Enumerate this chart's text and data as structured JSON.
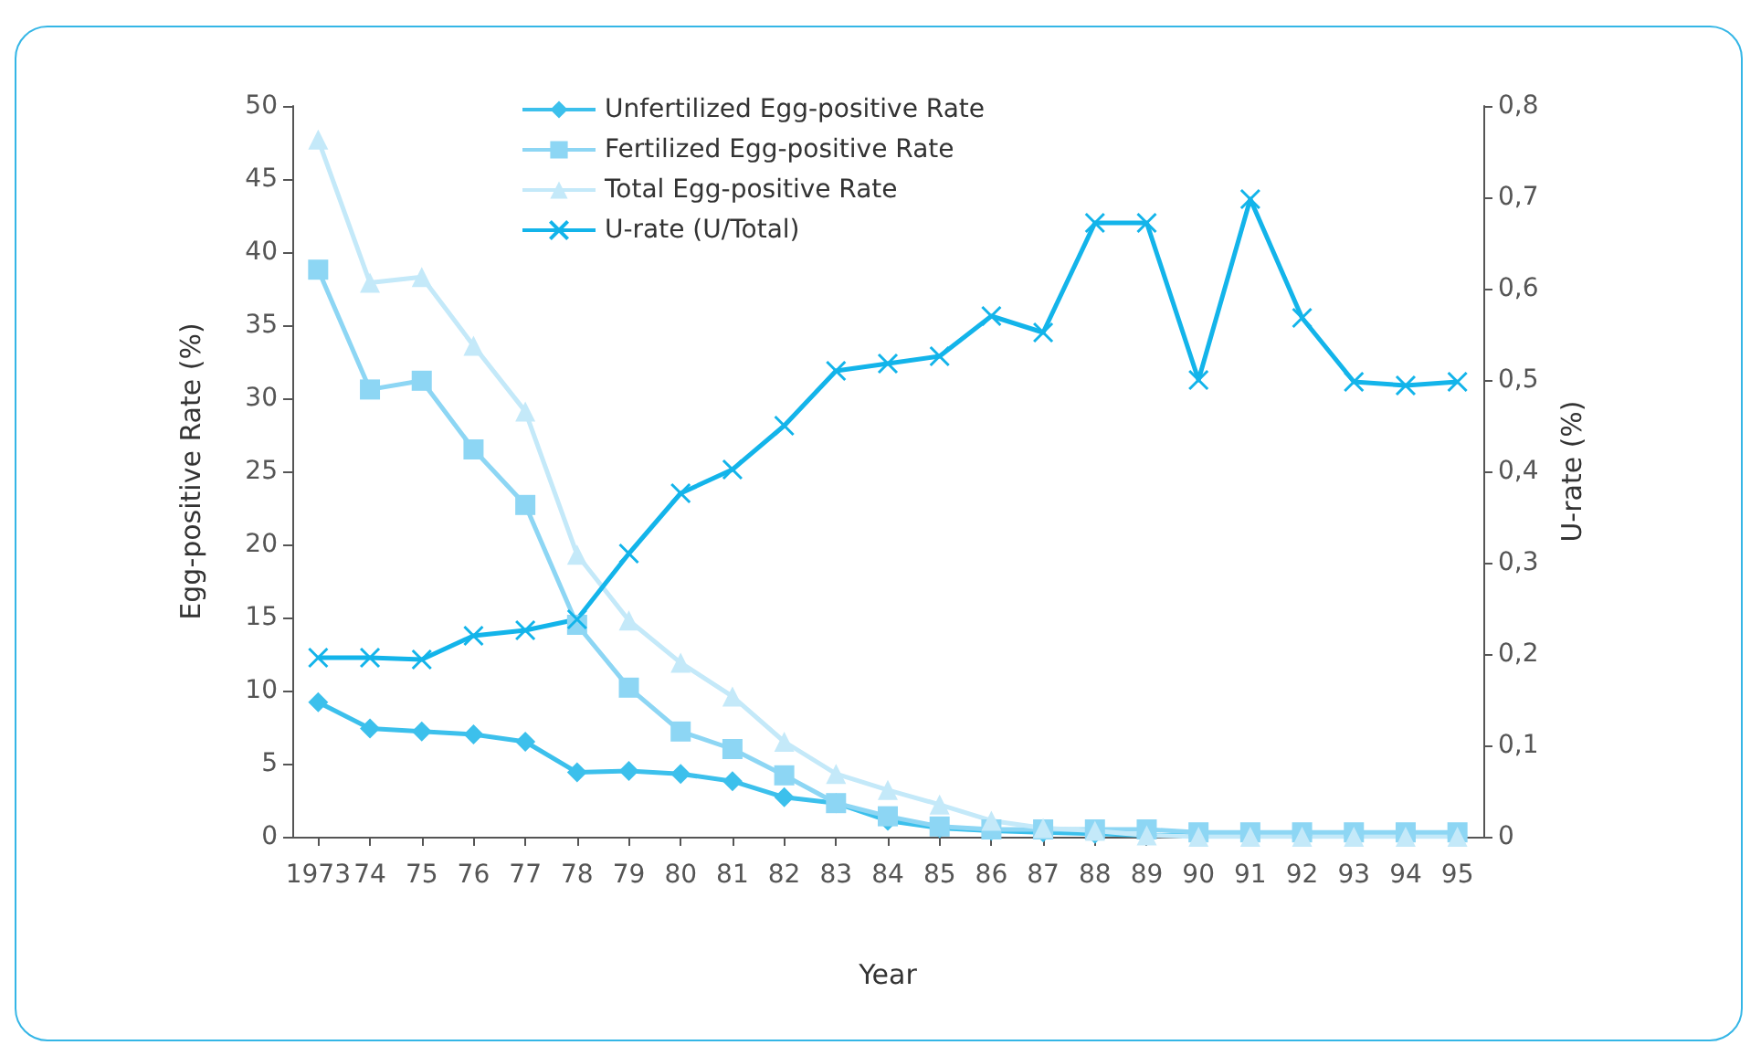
{
  "chart_data": {
    "type": "line",
    "xlabel": "Year",
    "ylabel": "Egg-positive Rate (%)",
    "y2label": "U-rate (%)",
    "categories": [
      "1973",
      "74",
      "75",
      "76",
      "77",
      "78",
      "79",
      "80",
      "81",
      "82",
      "83",
      "84",
      "85",
      "86",
      "87",
      "88",
      "89",
      "90",
      "91",
      "92",
      "93",
      "94",
      "95"
    ],
    "series": [
      {
        "name": "Unfertilized Egg-positive Rate",
        "color": "#3cc0ec",
        "marker": "diamond",
        "values": [
          9.2,
          7.4,
          7.2,
          7.0,
          6.5,
          4.4,
          4.5,
          4.3,
          3.8,
          2.7,
          2.3,
          1.1,
          0.6,
          0.4,
          0.3,
          0.2,
          0.1,
          0.1,
          0.1,
          0.1,
          0.1,
          0.1,
          0.1
        ]
      },
      {
        "name": "Fertilized Egg-positive Rate",
        "color": "#8dd6f4",
        "marker": "square",
        "values": [
          38.8,
          30.6,
          31.2,
          26.5,
          22.7,
          14.5,
          10.2,
          7.2,
          6.0,
          4.2,
          2.3,
          1.4,
          0.7,
          0.5,
          0.5,
          0.5,
          0.5,
          0.3,
          0.3,
          0.3,
          0.3,
          0.3,
          0.3
        ]
      },
      {
        "name": "Total Egg-positive Rate",
        "color": "#c4e9f9",
        "marker": "triangle",
        "values": [
          47.7,
          37.9,
          38.3,
          33.6,
          29.1,
          19.3,
          14.8,
          11.9,
          9.6,
          6.5,
          4.3,
          3.2,
          2.2,
          1.1,
          0.6,
          0.4,
          0.1,
          0,
          0,
          0,
          0,
          0,
          0
        ]
      },
      {
        "name": "U-rate (U/Total)",
        "color": "#13b4ea",
        "marker": "cross",
        "axis": "y2",
        "values": [
          0.196,
          0.196,
          0.194,
          0.22,
          0.226,
          0.238,
          0.31,
          0.376,
          0.402,
          0.45,
          0.51,
          0.518,
          0.526,
          0.57,
          0.552,
          0.672,
          0.672,
          0.5,
          0.698,
          0.568,
          0.498,
          0.494,
          0.498
        ]
      }
    ],
    "ylim": [
      0,
      50
    ],
    "yticks": [
      0,
      5,
      10,
      15,
      20,
      25,
      30,
      35,
      40,
      45,
      50
    ],
    "y2lim": [
      0,
      0.8
    ],
    "y2ticks": [
      0,
      {
        "value": 0.1,
        "label": "0,1"
      },
      {
        "value": 0.2,
        "label": "0,2"
      },
      {
        "value": 0.3,
        "label": "0,3"
      },
      {
        "value": 0.4,
        "label": "0,4"
      },
      {
        "value": 0.5,
        "label": "0,5"
      },
      {
        "value": 0.6,
        "label": "0,6"
      },
      {
        "value": 0.7,
        "label": "0,7"
      },
      {
        "value": 0.8,
        "label": "0,8"
      }
    ],
    "legend": "top",
    "grid": false,
    "line_style": "solid"
  }
}
